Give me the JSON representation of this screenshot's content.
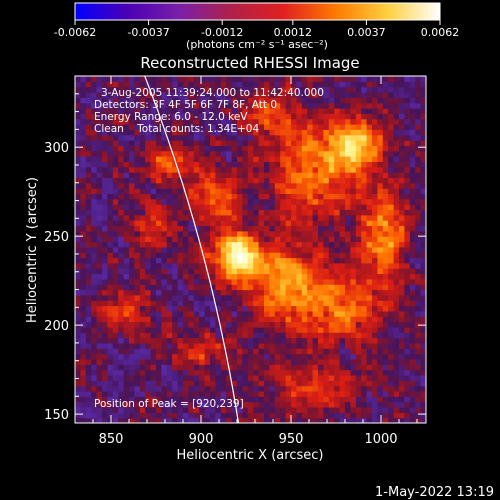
{
  "colorbar": {
    "tick_labels": [
      "-0.0062",
      "-0.0037",
      "-0.0012",
      "0.0012",
      "0.0037",
      "0.0062"
    ],
    "range": [
      -0.0062,
      0.0062
    ],
    "units_label": "(photons cm⁻² s⁻¹ asec⁻²)",
    "colors": [
      "#0000ff",
      "#4b00b4",
      "#7a1fa8",
      "#b0204a",
      "#e02020",
      "#ff7a00",
      "#ffd040",
      "#ffffff"
    ]
  },
  "chart_data": {
    "type": "heatmap",
    "title": "Reconstructed RHESSI Image",
    "xlabel": "Heliocentric X (arcsec)",
    "ylabel": "Heliocentric Y (arcsec)",
    "xlim": [
      830,
      1025
    ],
    "ylim": [
      145,
      340
    ],
    "x_ticks": [
      850,
      900,
      950,
      1000
    ],
    "y_ticks": [
      150,
      200,
      250,
      300
    ],
    "x_tick_labels": [
      "850",
      "900",
      "950",
      "1000"
    ],
    "y_tick_labels": [
      "150",
      "200",
      "250",
      "300"
    ],
    "limb_color": "#ffffff",
    "annotations": [
      "3-Aug-2005 11:39:24.000 to 11:42:40.000",
      "Detectors: 3F 4F 5F 6F 7F 8F, Att 0",
      "Energy Range: 6.0 - 12.0 keV",
      "Clean    Total counts: 1.34E+04"
    ],
    "peak_label": "Position of Peak = [920,239]",
    "peak": {
      "x": 920,
      "y": 239
    },
    "hotspots": [
      {
        "x": 918,
        "y": 238,
        "sx": 9,
        "sy": 9,
        "amp": 1.0
      },
      {
        "x": 945,
        "y": 225,
        "sx": 14,
        "sy": 14,
        "amp": 0.55
      },
      {
        "x": 960,
        "y": 285,
        "sx": 18,
        "sy": 20,
        "amp": 0.5
      },
      {
        "x": 985,
        "y": 300,
        "sx": 10,
        "sy": 10,
        "amp": 0.72
      },
      {
        "x": 1000,
        "y": 250,
        "sx": 9,
        "sy": 16,
        "amp": 0.6
      },
      {
        "x": 975,
        "y": 210,
        "sx": 22,
        "sy": 14,
        "amp": 0.45
      },
      {
        "x": 905,
        "y": 270,
        "sx": 10,
        "sy": 10,
        "amp": 0.45
      },
      {
        "x": 872,
        "y": 255,
        "sx": 9,
        "sy": 8,
        "amp": 0.4
      },
      {
        "x": 880,
        "y": 290,
        "sx": 11,
        "sy": 7,
        "amp": 0.45
      },
      {
        "x": 855,
        "y": 205,
        "sx": 10,
        "sy": 8,
        "amp": 0.35
      },
      {
        "x": 960,
        "y": 165,
        "sx": 16,
        "sy": 10,
        "amp": 0.35
      },
      {
        "x": 900,
        "y": 185,
        "sx": 12,
        "sy": 8,
        "amp": 0.3
      },
      {
        "x": 935,
        "y": 318,
        "sx": 10,
        "sy": 8,
        "amp": 0.35
      }
    ]
  },
  "footer": {
    "timestamp": "1-May-2022 13:19"
  }
}
